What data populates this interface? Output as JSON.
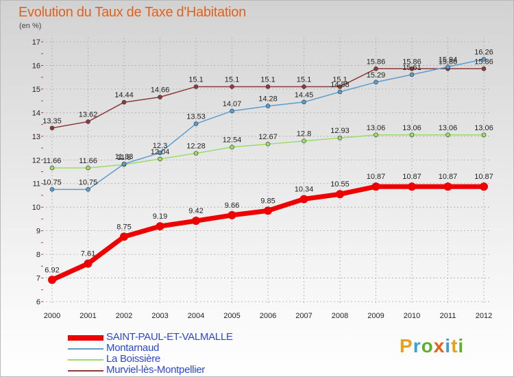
{
  "title": "Evolution du Taux de Taxe d'Habitation",
  "unit": "(en %)",
  "brand": {
    "logo_text": "Proxiti",
    "logo_colors": [
      "#e8a020",
      "#3aa0d8",
      "#5cb030",
      "#e0621a",
      "#3aa0d8",
      "#e8a020",
      "#5cb030"
    ]
  },
  "chart_data": {
    "type": "line",
    "title": "Evolution du Taux de Taxe d'Habitation",
    "ylabel": "(en %)",
    "xlabel": "",
    "x": [
      "2000",
      "2001",
      "2002",
      "2003",
      "2004",
      "2005",
      "2006",
      "2007",
      "2008",
      "2009",
      "2010",
      "2011",
      "2012"
    ],
    "ylim": [
      6,
      17
    ],
    "yticks": [
      "6",
      "7",
      "8",
      "9",
      "10",
      "11",
      "12",
      "13",
      "14",
      "15",
      "16",
      "17"
    ],
    "grid": true,
    "legend_position": "bottom-left",
    "series": [
      {
        "name": "SAINT-PAUL-ET-VALMALLE",
        "color": "#ee0000",
        "width": 7,
        "marker": 6,
        "values": [
          6.92,
          7.61,
          8.75,
          9.19,
          9.42,
          9.66,
          9.85,
          10.34,
          10.55,
          10.87,
          10.87,
          10.87,
          10.87
        ],
        "labels": [
          "6.92",
          "7.61",
          "8.75",
          "9.19",
          "9.42",
          "9.66",
          "9.85",
          "10.34",
          "10.55",
          "10.87",
          "10.87",
          "10.87",
          "10.87"
        ]
      },
      {
        "name": "Montarnaud",
        "color": "#5a9cd0",
        "width": 1.5,
        "marker": 3,
        "values": [
          10.75,
          10.75,
          11.83,
          12.3,
          13.53,
          14.07,
          14.28,
          14.45,
          14.88,
          15.29,
          15.61,
          15.94,
          16.26
        ],
        "labels": [
          "10.75",
          "10.75",
          "11.83",
          "12.3",
          "13.53",
          "14.07",
          "14.28",
          "14.45",
          "14.88",
          "15.29",
          "15.61",
          "15.94",
          "16.26"
        ]
      },
      {
        "name": "La Boissière",
        "color": "#99dd66",
        "width": 1.5,
        "marker": 3,
        "values": [
          11.66,
          11.66,
          11.8,
          12.04,
          12.28,
          12.54,
          12.67,
          12.8,
          12.93,
          13.06,
          13.06,
          13.06,
          13.06
        ],
        "labels": [
          "11.66",
          "11.66",
          "11.8",
          "12.04",
          "12.28",
          "12.54",
          "12.67",
          "12.8",
          "12.93",
          "13.06",
          "13.06",
          "13.06",
          "13.06"
        ]
      },
      {
        "name": "Murviel-lès-Montpellier",
        "color": "#8c3a3a",
        "width": 1.5,
        "marker": 3,
        "values": [
          13.35,
          13.62,
          14.44,
          14.66,
          15.1,
          15.1,
          15.1,
          15.1,
          15.1,
          15.86,
          15.86,
          15.86,
          15.86
        ],
        "labels": [
          "13.35",
          "13.62",
          "14.44",
          "14.66",
          "15.1",
          "15.1",
          "15.1",
          "15.1",
          "15.1",
          "15.86",
          "15.86",
          "15.86",
          "15.86"
        ]
      }
    ]
  }
}
